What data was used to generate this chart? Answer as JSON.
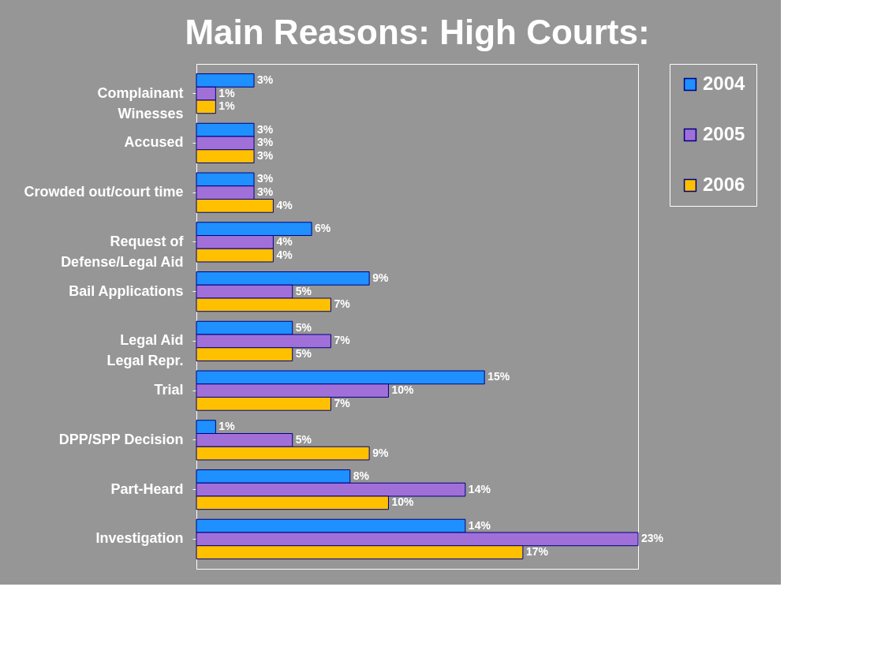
{
  "chart_data": {
    "type": "bar",
    "orientation": "horizontal",
    "title": "Main Reasons: High Courts:",
    "categories": [
      "Complainant\nWinesses",
      "Accused",
      "Crowded out/court time",
      "Request of\nDefense/Legal Aid",
      "Bail Applications",
      "Legal Aid\nLegal Repr.",
      "Trial",
      "DPP/SPP  Decision",
      "Part-Heard",
      "Investigation"
    ],
    "series": [
      {
        "name": "2004",
        "color": "#1e90ff",
        "values": [
          3,
          3,
          3,
          6,
          9,
          5,
          15,
          1,
          8,
          14
        ],
        "value_labels": [
          "3%",
          "3%",
          "3%",
          "6%",
          "9%",
          "5%",
          "15%",
          "1%",
          "8%",
          "14%"
        ]
      },
      {
        "name": "2005",
        "color": "#a070d8",
        "values": [
          1,
          3,
          3,
          4,
          5,
          7,
          10,
          5,
          14,
          23
        ],
        "value_labels": [
          "1%",
          "3%",
          "3%",
          "4%",
          "5%",
          "7%",
          "10%",
          "5%",
          "14%",
          "23%"
        ]
      },
      {
        "name": "2006",
        "color": "#ffc000",
        "values": [
          1,
          3,
          4,
          4,
          7,
          5,
          7,
          9,
          10,
          17
        ],
        "value_labels": [
          "1%",
          "3%",
          "4%",
          "4%",
          "7%",
          "5%",
          "7%",
          "9%",
          "10%",
          "17%"
        ]
      }
    ],
    "legend": "right",
    "grid": false
  }
}
